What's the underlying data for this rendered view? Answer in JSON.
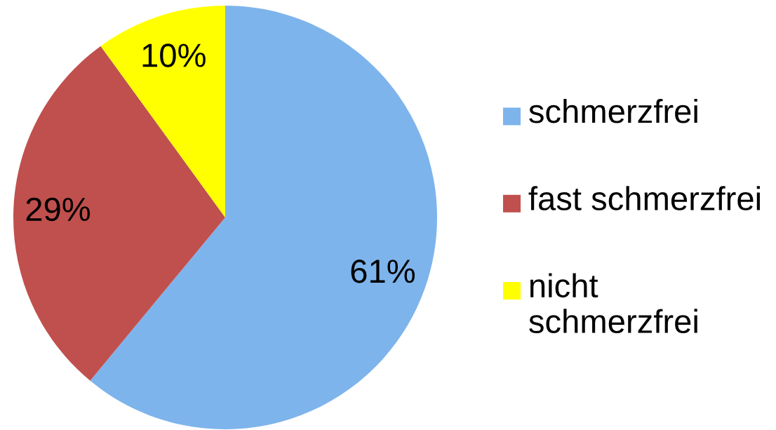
{
  "chart_data": {
    "type": "pie",
    "categories": [
      "schmerzfrei",
      "fast schmerzfrei",
      "nicht schmerzfrei"
    ],
    "values": [
      61,
      29,
      10
    ],
    "colors": [
      "#7eb4ec",
      "#c0504d",
      "#ffff00"
    ],
    "value_labels": [
      "61%",
      "29%",
      "10%"
    ],
    "legend": "right"
  }
}
